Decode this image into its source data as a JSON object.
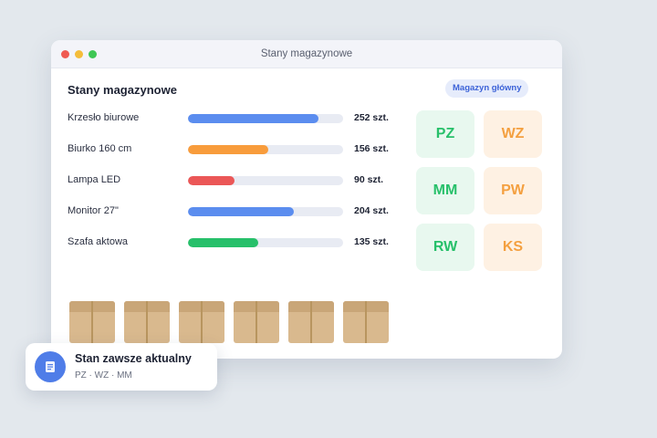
{
  "window": {
    "title": "Stany magazynowe",
    "section_title": "Stany magazynowe",
    "badge": "Magazyn główny"
  },
  "stock_items": [
    {
      "label": "Krzesło biurowe",
      "quantity": "252 szt.",
      "level": 0.84,
      "color": "#5b8def"
    },
    {
      "label": "Biurko 160 cm",
      "quantity": "156 szt.",
      "level": 0.52,
      "color": "#f89c3c"
    },
    {
      "label": "Lampa LED",
      "quantity": "90 szt.",
      "level": 0.3,
      "color": "#eb5757"
    },
    {
      "label": "Monitor 27\"",
      "quantity": "204 szt.",
      "level": 0.68,
      "color": "#5b8def"
    },
    {
      "label": "Szafa aktowa",
      "quantity": "135 szt.",
      "level": 0.45,
      "color": "#27c06a"
    }
  ],
  "documents": [
    {
      "label": "PZ",
      "tone": "green"
    },
    {
      "label": "WZ",
      "tone": "orange"
    },
    {
      "label": "MM",
      "tone": "green"
    },
    {
      "label": "PW",
      "tone": "orange"
    },
    {
      "label": "RW",
      "tone": "green"
    },
    {
      "label": "KS",
      "tone": "orange"
    }
  ],
  "boxes_count": 6,
  "toast": {
    "title": "Stan zawsze aktualny",
    "subtitle": "PZ · WZ · MM",
    "icon": "document-list-icon"
  }
}
